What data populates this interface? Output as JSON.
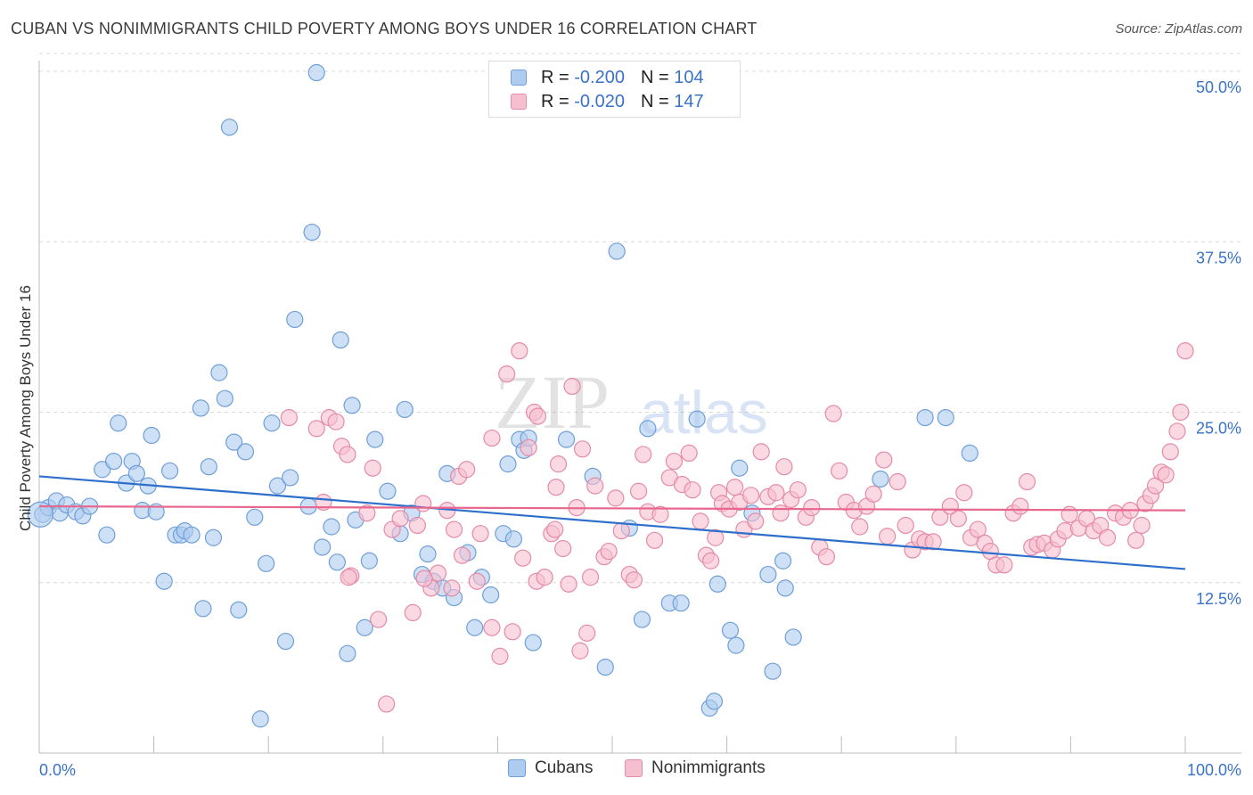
{
  "header": {
    "title": "CUBAN VS NONIMMIGRANTS CHILD POVERTY AMONG BOYS UNDER 16 CORRELATION CHART",
    "source": "Source: ZipAtlas.com"
  },
  "watermark": {
    "zip": "ZIP",
    "atlas": "atlas"
  },
  "legend_top": [
    {
      "r_label": "R =",
      "r_value": "-0.200",
      "n_label": "N =",
      "n_value": "104"
    },
    {
      "r_label": "R =",
      "r_value": "-0.020",
      "n_label": "N =",
      "n_value": "147"
    }
  ],
  "legend_bottom": [
    {
      "label": "Cubans"
    },
    {
      "label": "Nonimmigrants"
    }
  ],
  "colors": {
    "cubans_fill": "#aecbf0",
    "cubans_stroke": "#6f9fd8",
    "cubans_line": "#2e6fcc",
    "nonimm_fill": "#f6bfd0",
    "nonimm_stroke": "#e58aa8",
    "nonimm_line": "#e8678f",
    "axis_label": "#3a72c8",
    "grid": "#d9d9d9"
  },
  "chart_data": {
    "type": "scatter",
    "ylabel": "Child Poverty Among Boys Under 16",
    "xlim": [
      0,
      100
    ],
    "ylim": [
      0,
      52
    ],
    "x_tick_labels": [
      "0.0%",
      "100.0%"
    ],
    "y_ticks": [
      {
        "value": 12.5,
        "label": "12.5%"
      },
      {
        "value": 25.0,
        "label": "25.0%"
      },
      {
        "value": 37.5,
        "label": "37.5%"
      },
      {
        "value": 50.0,
        "label": "50.0%"
      }
    ],
    "grid": true,
    "series": [
      {
        "name": "Cubans",
        "trend": {
          "x": [
            0,
            100
          ],
          "y": [
            20.3,
            13.5
          ]
        },
        "points": [
          [
            0.3,
            17.5
          ],
          [
            0.8,
            18.0
          ],
          [
            1.5,
            18.5
          ],
          [
            1.8,
            17.6
          ],
          [
            2.4,
            18.2
          ],
          [
            3.2,
            17.7
          ],
          [
            3.8,
            17.4
          ],
          [
            4.4,
            18.1
          ],
          [
            5.5,
            20.8
          ],
          [
            5.9,
            16.0
          ],
          [
            6.5,
            21.4
          ],
          [
            6.9,
            24.2
          ],
          [
            7.6,
            19.8
          ],
          [
            8.1,
            21.4
          ],
          [
            8.5,
            20.5
          ],
          [
            9.0,
            17.8
          ],
          [
            9.5,
            19.6
          ],
          [
            9.8,
            23.3
          ],
          [
            10.2,
            17.7
          ],
          [
            10.9,
            12.6
          ],
          [
            11.4,
            20.7
          ],
          [
            11.9,
            16.0
          ],
          [
            12.4,
            16.0
          ],
          [
            12.7,
            16.3
          ],
          [
            13.3,
            16.0
          ],
          [
            14.1,
            25.3
          ],
          [
            14.3,
            10.6
          ],
          [
            14.8,
            21.0
          ],
          [
            15.2,
            15.8
          ],
          [
            15.7,
            27.9
          ],
          [
            16.2,
            26.0
          ],
          [
            16.6,
            45.9
          ],
          [
            17.0,
            22.8
          ],
          [
            17.4,
            10.5
          ],
          [
            18.0,
            22.1
          ],
          [
            18.8,
            17.3
          ],
          [
            19.3,
            2.5
          ],
          [
            19.8,
            13.9
          ],
          [
            20.3,
            24.2
          ],
          [
            20.8,
            19.6
          ],
          [
            21.5,
            8.2
          ],
          [
            21.9,
            20.2
          ],
          [
            22.3,
            31.8
          ],
          [
            23.5,
            18.1
          ],
          [
            23.8,
            38.2
          ],
          [
            24.2,
            49.9
          ],
          [
            24.7,
            15.1
          ],
          [
            25.5,
            16.6
          ],
          [
            26.0,
            14.0
          ],
          [
            26.3,
            30.3
          ],
          [
            26.9,
            7.3
          ],
          [
            27.3,
            25.5
          ],
          [
            27.6,
            17.1
          ],
          [
            28.4,
            9.2
          ],
          [
            28.8,
            14.1
          ],
          [
            29.3,
            23.0
          ],
          [
            30.4,
            19.2
          ],
          [
            31.5,
            16.1
          ],
          [
            31.9,
            25.2
          ],
          [
            32.5,
            17.6
          ],
          [
            33.4,
            13.1
          ],
          [
            33.9,
            14.6
          ],
          [
            34.4,
            12.6
          ],
          [
            35.2,
            12.1
          ],
          [
            35.6,
            20.5
          ],
          [
            36.2,
            11.4
          ],
          [
            37.4,
            14.7
          ],
          [
            38.0,
            9.2
          ],
          [
            38.6,
            12.9
          ],
          [
            39.4,
            11.6
          ],
          [
            40.5,
            16.1
          ],
          [
            40.9,
            21.2
          ],
          [
            41.4,
            15.7
          ],
          [
            41.9,
            23.0
          ],
          [
            42.3,
            22.2
          ],
          [
            42.7,
            23.1
          ],
          [
            43.1,
            8.1
          ],
          [
            46.0,
            23.0
          ],
          [
            48.3,
            20.3
          ],
          [
            49.4,
            6.3
          ],
          [
            50.4,
            36.8
          ],
          [
            51.5,
            16.5
          ],
          [
            52.6,
            9.8
          ],
          [
            53.1,
            23.8
          ],
          [
            55.0,
            11.0
          ],
          [
            56.0,
            11.0
          ],
          [
            57.4,
            24.5
          ],
          [
            58.5,
            3.3
          ],
          [
            58.9,
            3.8
          ],
          [
            59.2,
            12.4
          ],
          [
            60.3,
            9.0
          ],
          [
            60.8,
            7.9
          ],
          [
            61.1,
            20.9
          ],
          [
            62.2,
            17.6
          ],
          [
            63.6,
            13.1
          ],
          [
            64.0,
            6.0
          ],
          [
            64.9,
            14.1
          ],
          [
            65.1,
            12.1
          ],
          [
            65.8,
            8.5
          ],
          [
            73.4,
            20.1
          ],
          [
            77.3,
            24.6
          ],
          [
            79.1,
            24.6
          ],
          [
            81.2,
            22.0
          ],
          [
            0.1,
            17.5
          ]
        ]
      },
      {
        "name": "Nonimmigrants",
        "trend": {
          "x": [
            0,
            100
          ],
          "y": [
            18.1,
            17.8
          ]
        },
        "points": [
          [
            21.8,
            24.6
          ],
          [
            24.2,
            23.8
          ],
          [
            24.8,
            18.4
          ],
          [
            25.3,
            24.6
          ],
          [
            25.9,
            24.3
          ],
          [
            26.4,
            22.5
          ],
          [
            26.9,
            21.9
          ],
          [
            27.2,
            13.0
          ],
          [
            28.6,
            17.6
          ],
          [
            29.1,
            20.9
          ],
          [
            29.6,
            9.8
          ],
          [
            30.3,
            3.6
          ],
          [
            30.8,
            16.4
          ],
          [
            31.5,
            17.2
          ],
          [
            32.6,
            10.3
          ],
          [
            33.0,
            16.7
          ],
          [
            33.5,
            18.3
          ],
          [
            34.2,
            12.1
          ],
          [
            34.8,
            13.2
          ],
          [
            35.6,
            17.8
          ],
          [
            36.2,
            16.4
          ],
          [
            36.6,
            20.3
          ],
          [
            36.9,
            14.5
          ],
          [
            37.3,
            20.8
          ],
          [
            38.2,
            12.6
          ],
          [
            38.5,
            16.1
          ],
          [
            39.5,
            9.2
          ],
          [
            39.5,
            23.1
          ],
          [
            40.2,
            7.1
          ],
          [
            40.8,
            27.8
          ],
          [
            41.3,
            8.9
          ],
          [
            41.9,
            29.5
          ],
          [
            42.2,
            14.3
          ],
          [
            42.7,
            22.4
          ],
          [
            43.2,
            25.0
          ],
          [
            43.4,
            12.6
          ],
          [
            43.5,
            24.7
          ],
          [
            44.1,
            12.9
          ],
          [
            44.7,
            16.1
          ],
          [
            45.1,
            19.5
          ],
          [
            45.3,
            21.2
          ],
          [
            45.7,
            15.0
          ],
          [
            46.2,
            12.4
          ],
          [
            46.5,
            26.9
          ],
          [
            46.9,
            18.0
          ],
          [
            47.2,
            7.5
          ],
          [
            47.4,
            22.3
          ],
          [
            47.8,
            8.8
          ],
          [
            48.5,
            19.6
          ],
          [
            49.3,
            14.4
          ],
          [
            49.7,
            14.8
          ],
          [
            50.3,
            18.7
          ],
          [
            50.8,
            16.3
          ],
          [
            51.5,
            13.1
          ],
          [
            51.9,
            12.7
          ],
          [
            52.3,
            19.2
          ],
          [
            52.7,
            21.9
          ],
          [
            53.1,
            17.7
          ],
          [
            53.7,
            15.6
          ],
          [
            54.2,
            17.5
          ],
          [
            55.0,
            20.2
          ],
          [
            55.4,
            21.4
          ],
          [
            56.1,
            19.7
          ],
          [
            56.7,
            22.0
          ],
          [
            57.0,
            19.3
          ],
          [
            57.7,
            17.0
          ],
          [
            58.2,
            14.5
          ],
          [
            58.6,
            14.1
          ],
          [
            59.0,
            15.8
          ],
          [
            59.3,
            19.1
          ],
          [
            59.6,
            18.3
          ],
          [
            60.2,
            17.9
          ],
          [
            60.7,
            19.5
          ],
          [
            61.1,
            18.4
          ],
          [
            61.5,
            16.4
          ],
          [
            62.1,
            18.9
          ],
          [
            62.5,
            17.0
          ],
          [
            63.0,
            22.1
          ],
          [
            63.6,
            18.8
          ],
          [
            64.3,
            19.1
          ],
          [
            64.7,
            17.6
          ],
          [
            65.0,
            21.0
          ],
          [
            65.6,
            18.6
          ],
          [
            66.2,
            19.3
          ],
          [
            66.9,
            17.3
          ],
          [
            67.4,
            18.0
          ],
          [
            68.1,
            15.1
          ],
          [
            68.7,
            14.4
          ],
          [
            69.3,
            24.9
          ],
          [
            69.8,
            20.7
          ],
          [
            70.4,
            18.4
          ],
          [
            71.1,
            17.8
          ],
          [
            71.6,
            16.6
          ],
          [
            72.2,
            18.1
          ],
          [
            72.8,
            19.0
          ],
          [
            73.7,
            21.5
          ],
          [
            74.0,
            15.9
          ],
          [
            74.9,
            19.9
          ],
          [
            75.6,
            16.7
          ],
          [
            76.2,
            14.9
          ],
          [
            76.8,
            15.7
          ],
          [
            77.3,
            15.5
          ],
          [
            78.0,
            15.5
          ],
          [
            78.6,
            17.3
          ],
          [
            79.5,
            18.1
          ],
          [
            80.2,
            17.2
          ],
          [
            80.7,
            19.1
          ],
          [
            81.3,
            15.8
          ],
          [
            81.9,
            16.4
          ],
          [
            82.5,
            15.4
          ],
          [
            83.0,
            14.8
          ],
          [
            83.5,
            13.8
          ],
          [
            84.2,
            13.8
          ],
          [
            85.0,
            17.6
          ],
          [
            85.6,
            18.1
          ],
          [
            86.2,
            19.9
          ],
          [
            86.6,
            15.1
          ],
          [
            87.1,
            15.3
          ],
          [
            87.7,
            15.4
          ],
          [
            88.4,
            14.9
          ],
          [
            88.9,
            15.7
          ],
          [
            89.5,
            16.3
          ],
          [
            89.9,
            17.5
          ],
          [
            90.7,
            16.5
          ],
          [
            91.4,
            17.2
          ],
          [
            92.0,
            16.3
          ],
          [
            92.6,
            16.7
          ],
          [
            93.2,
            15.8
          ],
          [
            93.9,
            17.6
          ],
          [
            94.6,
            17.3
          ],
          [
            95.2,
            17.8
          ],
          [
            95.7,
            15.6
          ],
          [
            96.2,
            16.7
          ],
          [
            96.5,
            18.3
          ],
          [
            97.0,
            18.9
          ],
          [
            97.4,
            19.6
          ],
          [
            97.9,
            20.6
          ],
          [
            98.3,
            20.4
          ],
          [
            98.7,
            22.1
          ],
          [
            99.3,
            23.6
          ],
          [
            99.6,
            25.0
          ],
          [
            100.0,
            29.5
          ],
          [
            27.0,
            12.9
          ],
          [
            36.0,
            12.1
          ],
          [
            33.6,
            12.8
          ],
          [
            45.0,
            16.4
          ],
          [
            48.1,
            12.9
          ]
        ]
      }
    ]
  }
}
